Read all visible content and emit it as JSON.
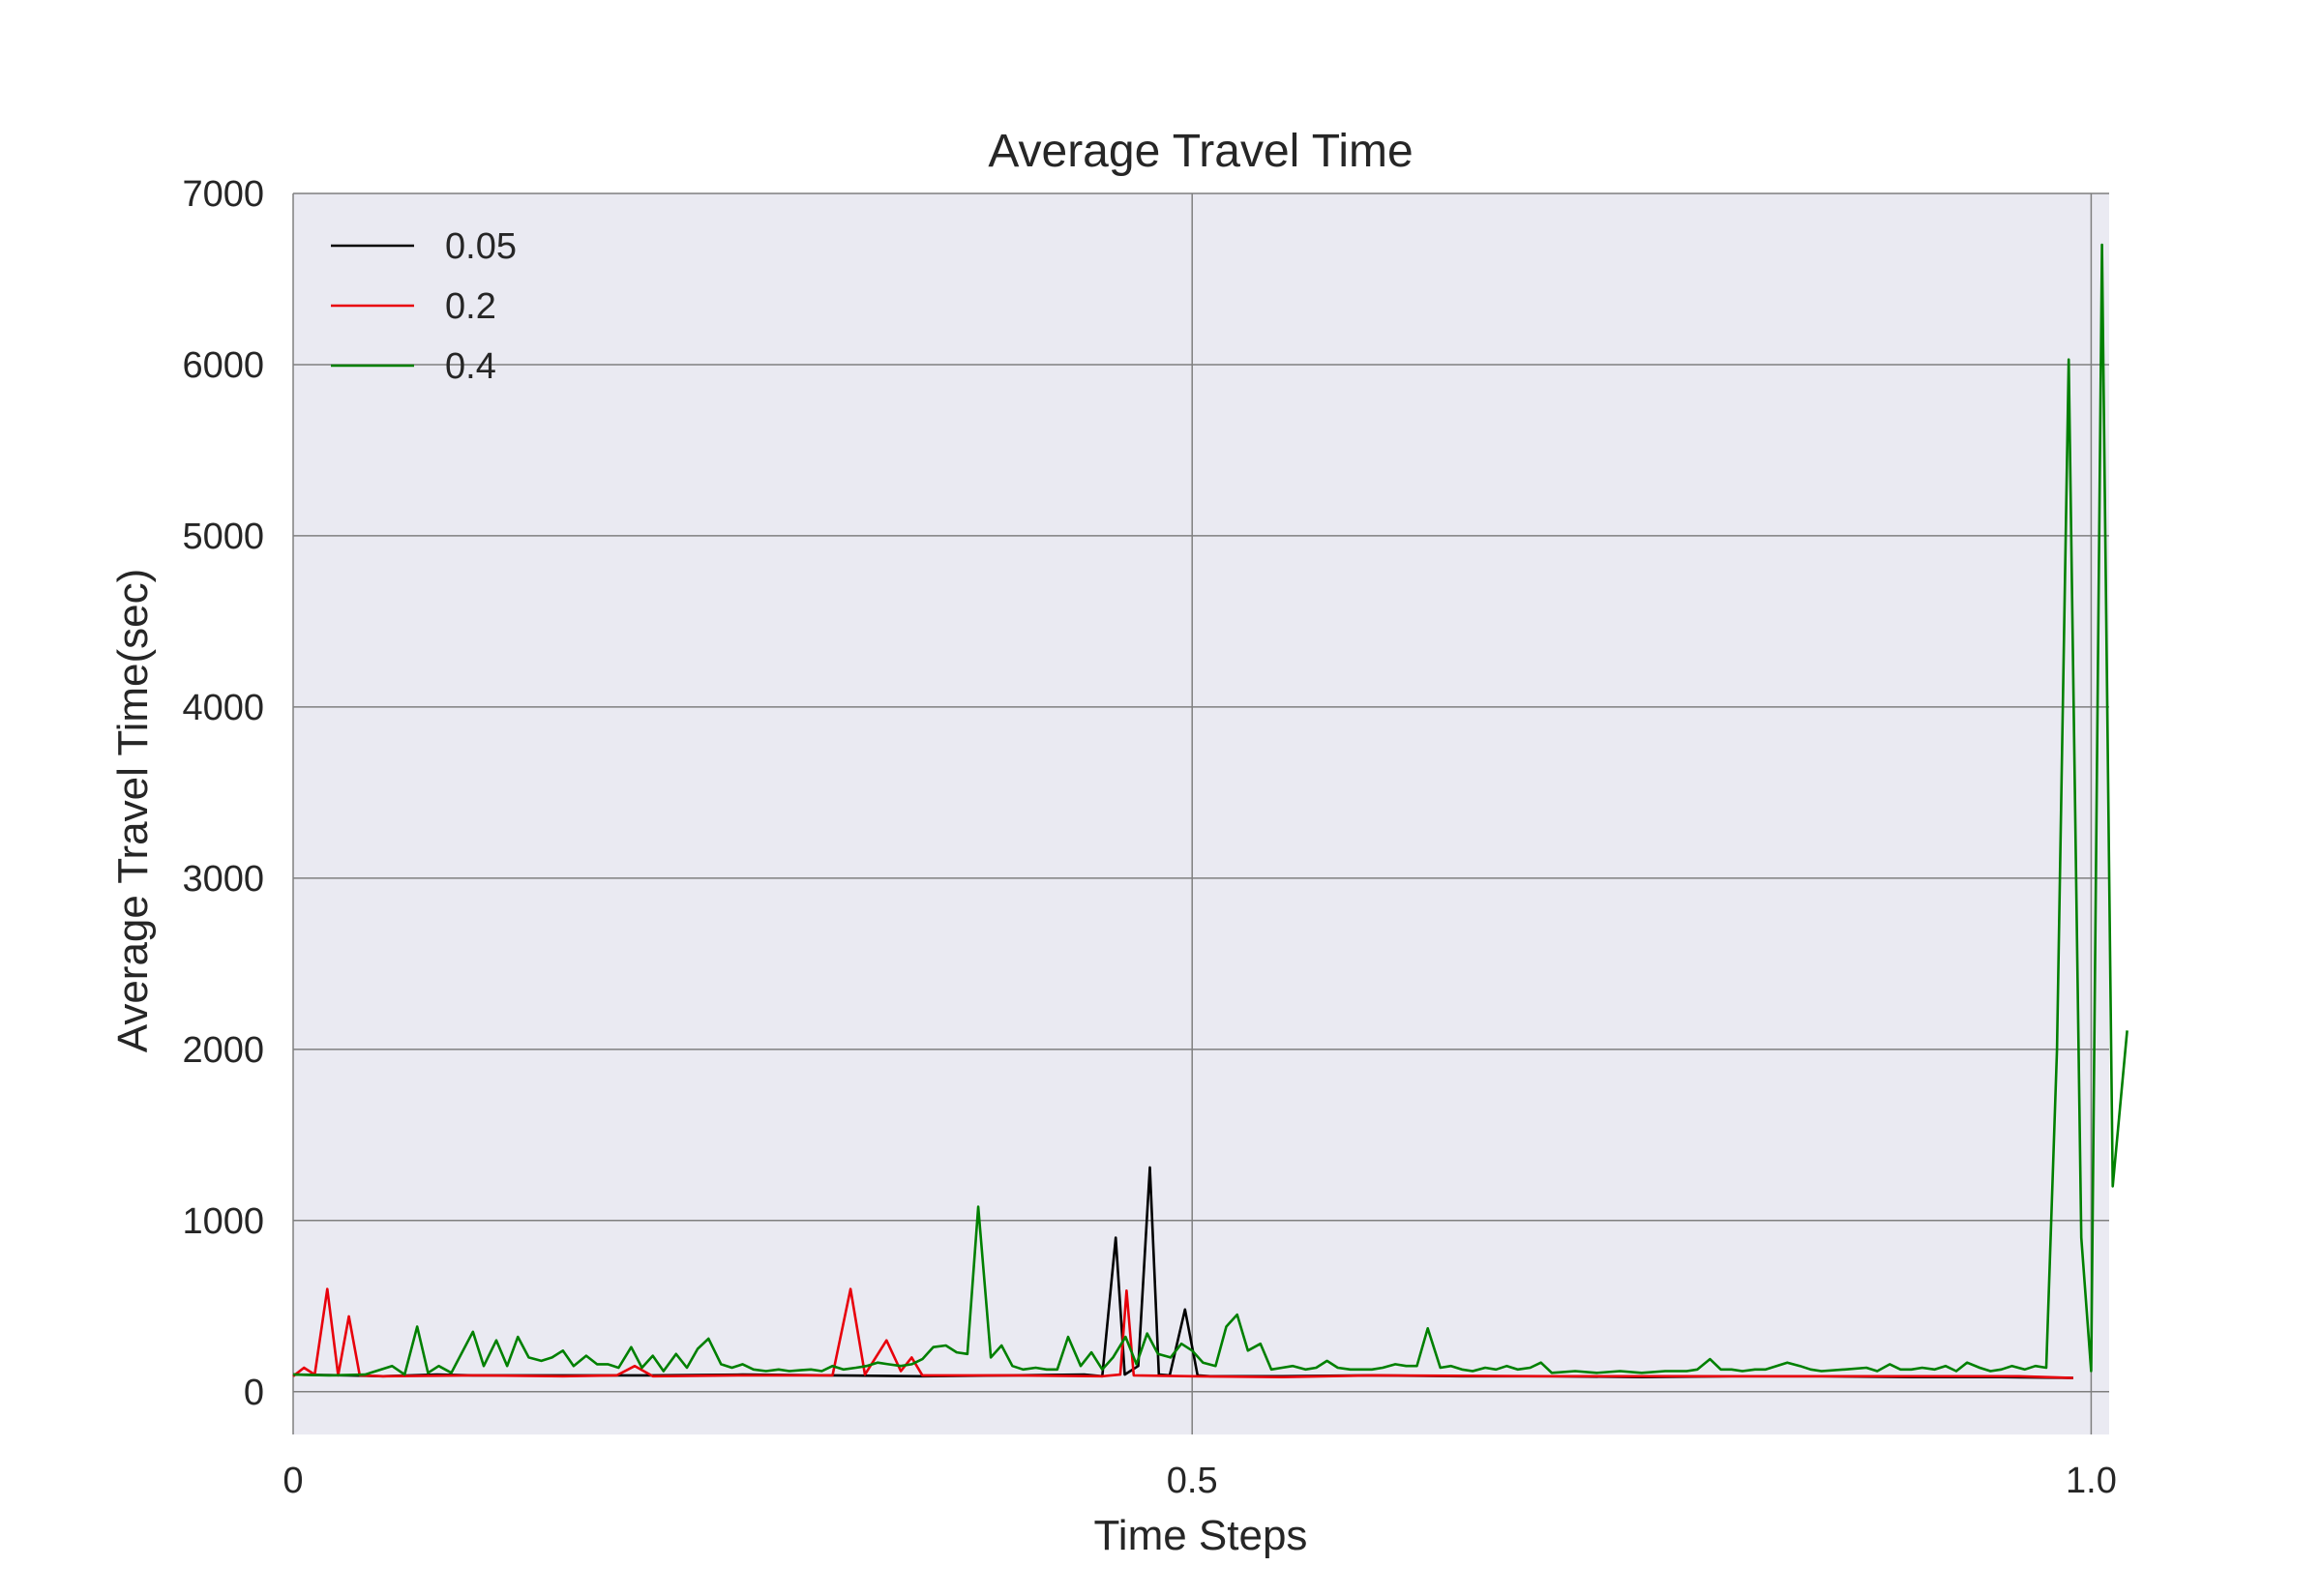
{
  "chart_data": {
    "type": "line",
    "title": "Average Travel Time",
    "xlabel": "Time Steps",
    "ylabel": "Average Travel Time(sec)",
    "xlim": [
      0,
      1.01
    ],
    "ylim": [
      -250,
      7000
    ],
    "xticks": [
      0,
      0.5,
      1.0
    ],
    "xtick_labels": [
      "0",
      "0.5",
      "1.0"
    ],
    "yticks": [
      0,
      1000,
      2000,
      3000,
      4000,
      5000,
      6000,
      7000
    ],
    "ytick_labels": [
      "0",
      "1000",
      "2000",
      "3000",
      "4000",
      "5000",
      "6000",
      "7000"
    ],
    "grid": true,
    "legend_position": "top-left",
    "series": [
      {
        "name": "0.05",
        "color": "#000000",
        "points": [
          [
            0,
            100
          ],
          [
            0.03,
            95
          ],
          [
            0.05,
            90
          ],
          [
            0.08,
            100
          ],
          [
            0.1,
            95
          ],
          [
            0.15,
            95
          ],
          [
            0.2,
            95
          ],
          [
            0.25,
            100
          ],
          [
            0.3,
            95
          ],
          [
            0.35,
            90
          ],
          [
            0.4,
            95
          ],
          [
            0.44,
            100
          ],
          [
            0.45,
            90
          ],
          [
            0.4575,
            900
          ],
          [
            0.4625,
            100
          ],
          [
            0.47,
            150
          ],
          [
            0.4765,
            1310
          ],
          [
            0.4815,
            100
          ],
          [
            0.4875,
            95
          ],
          [
            0.496,
            480
          ],
          [
            0.503,
            95
          ],
          [
            0.51,
            90
          ],
          [
            0.55,
            90
          ],
          [
            0.6,
            95
          ],
          [
            0.65,
            90
          ],
          [
            0.7,
            90
          ],
          [
            0.75,
            85
          ],
          [
            0.8,
            90
          ],
          [
            0.85,
            90
          ],
          [
            0.9,
            85
          ],
          [
            0.95,
            85
          ],
          [
            0.99,
            80
          ]
        ]
      },
      {
        "name": "0.2",
        "color": "#e8000b",
        "points": [
          [
            0,
            90
          ],
          [
            0.006,
            140
          ],
          [
            0.012,
            100
          ],
          [
            0.019,
            600
          ],
          [
            0.025,
            95
          ],
          [
            0.031,
            440
          ],
          [
            0.037,
            95
          ],
          [
            0.05,
            90
          ],
          [
            0.1,
            95
          ],
          [
            0.15,
            90
          ],
          [
            0.18,
            95
          ],
          [
            0.19,
            150
          ],
          [
            0.2,
            90
          ],
          [
            0.25,
            95
          ],
          [
            0.3,
            95
          ],
          [
            0.31,
            600
          ],
          [
            0.318,
            100
          ],
          [
            0.33,
            300
          ],
          [
            0.338,
            120
          ],
          [
            0.344,
            200
          ],
          [
            0.35,
            95
          ],
          [
            0.4,
            95
          ],
          [
            0.45,
            90
          ],
          [
            0.46,
            100
          ],
          [
            0.4635,
            590
          ],
          [
            0.4675,
            95
          ],
          [
            0.5,
            90
          ],
          [
            0.55,
            85
          ],
          [
            0.6,
            95
          ],
          [
            0.7,
            90
          ],
          [
            0.8,
            90
          ],
          [
            0.9,
            90
          ],
          [
            0.96,
            90
          ],
          [
            0.99,
            80
          ]
        ]
      },
      {
        "name": "0.4",
        "color": "#008000",
        "points": [
          [
            0,
            100
          ],
          [
            0.02,
            95
          ],
          [
            0.04,
            100
          ],
          [
            0.055,
            150
          ],
          [
            0.062,
            100
          ],
          [
            0.069,
            380
          ],
          [
            0.075,
            110
          ],
          [
            0.081,
            150
          ],
          [
            0.088,
            110
          ],
          [
            0.1,
            350
          ],
          [
            0.106,
            150
          ],
          [
            0.113,
            300
          ],
          [
            0.119,
            150
          ],
          [
            0.125,
            320
          ],
          [
            0.131,
            200
          ],
          [
            0.138,
            180
          ],
          [
            0.144,
            200
          ],
          [
            0.15,
            240
          ],
          [
            0.156,
            150
          ],
          [
            0.163,
            210
          ],
          [
            0.169,
            160
          ],
          [
            0.175,
            160
          ],
          [
            0.181,
            140
          ],
          [
            0.188,
            260
          ],
          [
            0.194,
            140
          ],
          [
            0.2,
            210
          ],
          [
            0.206,
            120
          ],
          [
            0.213,
            220
          ],
          [
            0.219,
            140
          ],
          [
            0.225,
            250
          ],
          [
            0.231,
            310
          ],
          [
            0.238,
            160
          ],
          [
            0.244,
            140
          ],
          [
            0.25,
            160
          ],
          [
            0.256,
            130
          ],
          [
            0.263,
            120
          ],
          [
            0.27,
            130
          ],
          [
            0.276,
            120
          ],
          [
            0.282,
            125
          ],
          [
            0.288,
            130
          ],
          [
            0.294,
            120
          ],
          [
            0.3,
            150
          ],
          [
            0.306,
            130
          ],
          [
            0.313,
            140
          ],
          [
            0.319,
            150
          ],
          [
            0.325,
            170
          ],
          [
            0.331,
            160
          ],
          [
            0.338,
            150
          ],
          [
            0.344,
            160
          ],
          [
            0.35,
            190
          ],
          [
            0.356,
            260
          ],
          [
            0.363,
            270
          ],
          [
            0.369,
            230
          ],
          [
            0.375,
            220
          ],
          [
            0.381,
            1080
          ],
          [
            0.388,
            200
          ],
          [
            0.394,
            270
          ],
          [
            0.4,
            150
          ],
          [
            0.406,
            130
          ],
          [
            0.413,
            140
          ],
          [
            0.419,
            130
          ],
          [
            0.425,
            130
          ],
          [
            0.431,
            320
          ],
          [
            0.438,
            150
          ],
          [
            0.444,
            230
          ],
          [
            0.45,
            130
          ],
          [
            0.456,
            200
          ],
          [
            0.463,
            320
          ],
          [
            0.469,
            160
          ],
          [
            0.475,
            340
          ],
          [
            0.481,
            220
          ],
          [
            0.488,
            200
          ],
          [
            0.494,
            280
          ],
          [
            0.5,
            240
          ],
          [
            0.506,
            170
          ],
          [
            0.513,
            150
          ],
          [
            0.519,
            380
          ],
          [
            0.525,
            450
          ],
          [
            0.531,
            240
          ],
          [
            0.538,
            280
          ],
          [
            0.544,
            130
          ],
          [
            0.55,
            140
          ],
          [
            0.556,
            150
          ],
          [
            0.563,
            130
          ],
          [
            0.569,
            140
          ],
          [
            0.575,
            180
          ],
          [
            0.581,
            140
          ],
          [
            0.588,
            130
          ],
          [
            0.594,
            130
          ],
          [
            0.6,
            130
          ],
          [
            0.606,
            140
          ],
          [
            0.613,
            160
          ],
          [
            0.619,
            150
          ],
          [
            0.625,
            150
          ],
          [
            0.631,
            370
          ],
          [
            0.638,
            140
          ],
          [
            0.644,
            150
          ],
          [
            0.65,
            130
          ],
          [
            0.656,
            120
          ],
          [
            0.663,
            140
          ],
          [
            0.669,
            130
          ],
          [
            0.675,
            150
          ],
          [
            0.681,
            130
          ],
          [
            0.688,
            140
          ],
          [
            0.694,
            170
          ],
          [
            0.7,
            110
          ],
          [
            0.713,
            120
          ],
          [
            0.725,
            110
          ],
          [
            0.738,
            120
          ],
          [
            0.75,
            110
          ],
          [
            0.763,
            120
          ],
          [
            0.775,
            120
          ],
          [
            0.781,
            130
          ],
          [
            0.788,
            190
          ],
          [
            0.794,
            130
          ],
          [
            0.8,
            130
          ],
          [
            0.806,
            120
          ],
          [
            0.813,
            130
          ],
          [
            0.819,
            130
          ],
          [
            0.825,
            150
          ],
          [
            0.831,
            170
          ],
          [
            0.838,
            150
          ],
          [
            0.844,
            130
          ],
          [
            0.85,
            120
          ],
          [
            0.863,
            130
          ],
          [
            0.875,
            140
          ],
          [
            0.881,
            120
          ],
          [
            0.888,
            160
          ],
          [
            0.894,
            130
          ],
          [
            0.9,
            130
          ],
          [
            0.906,
            140
          ],
          [
            0.913,
            130
          ],
          [
            0.919,
            150
          ],
          [
            0.925,
            120
          ],
          [
            0.931,
            170
          ],
          [
            0.938,
            140
          ],
          [
            0.944,
            120
          ],
          [
            0.95,
            130
          ],
          [
            0.956,
            150
          ],
          [
            0.963,
            130
          ],
          [
            0.969,
            150
          ],
          [
            0.975,
            140
          ],
          [
            0.981,
            2000
          ],
          [
            0.9875,
            6030
          ],
          [
            0.9945,
            900
          ],
          [
            1.0,
            120
          ],
          [
            1.006,
            6700
          ],
          [
            1.012,
            1200
          ],
          [
            1.02,
            2110
          ]
        ]
      }
    ]
  }
}
